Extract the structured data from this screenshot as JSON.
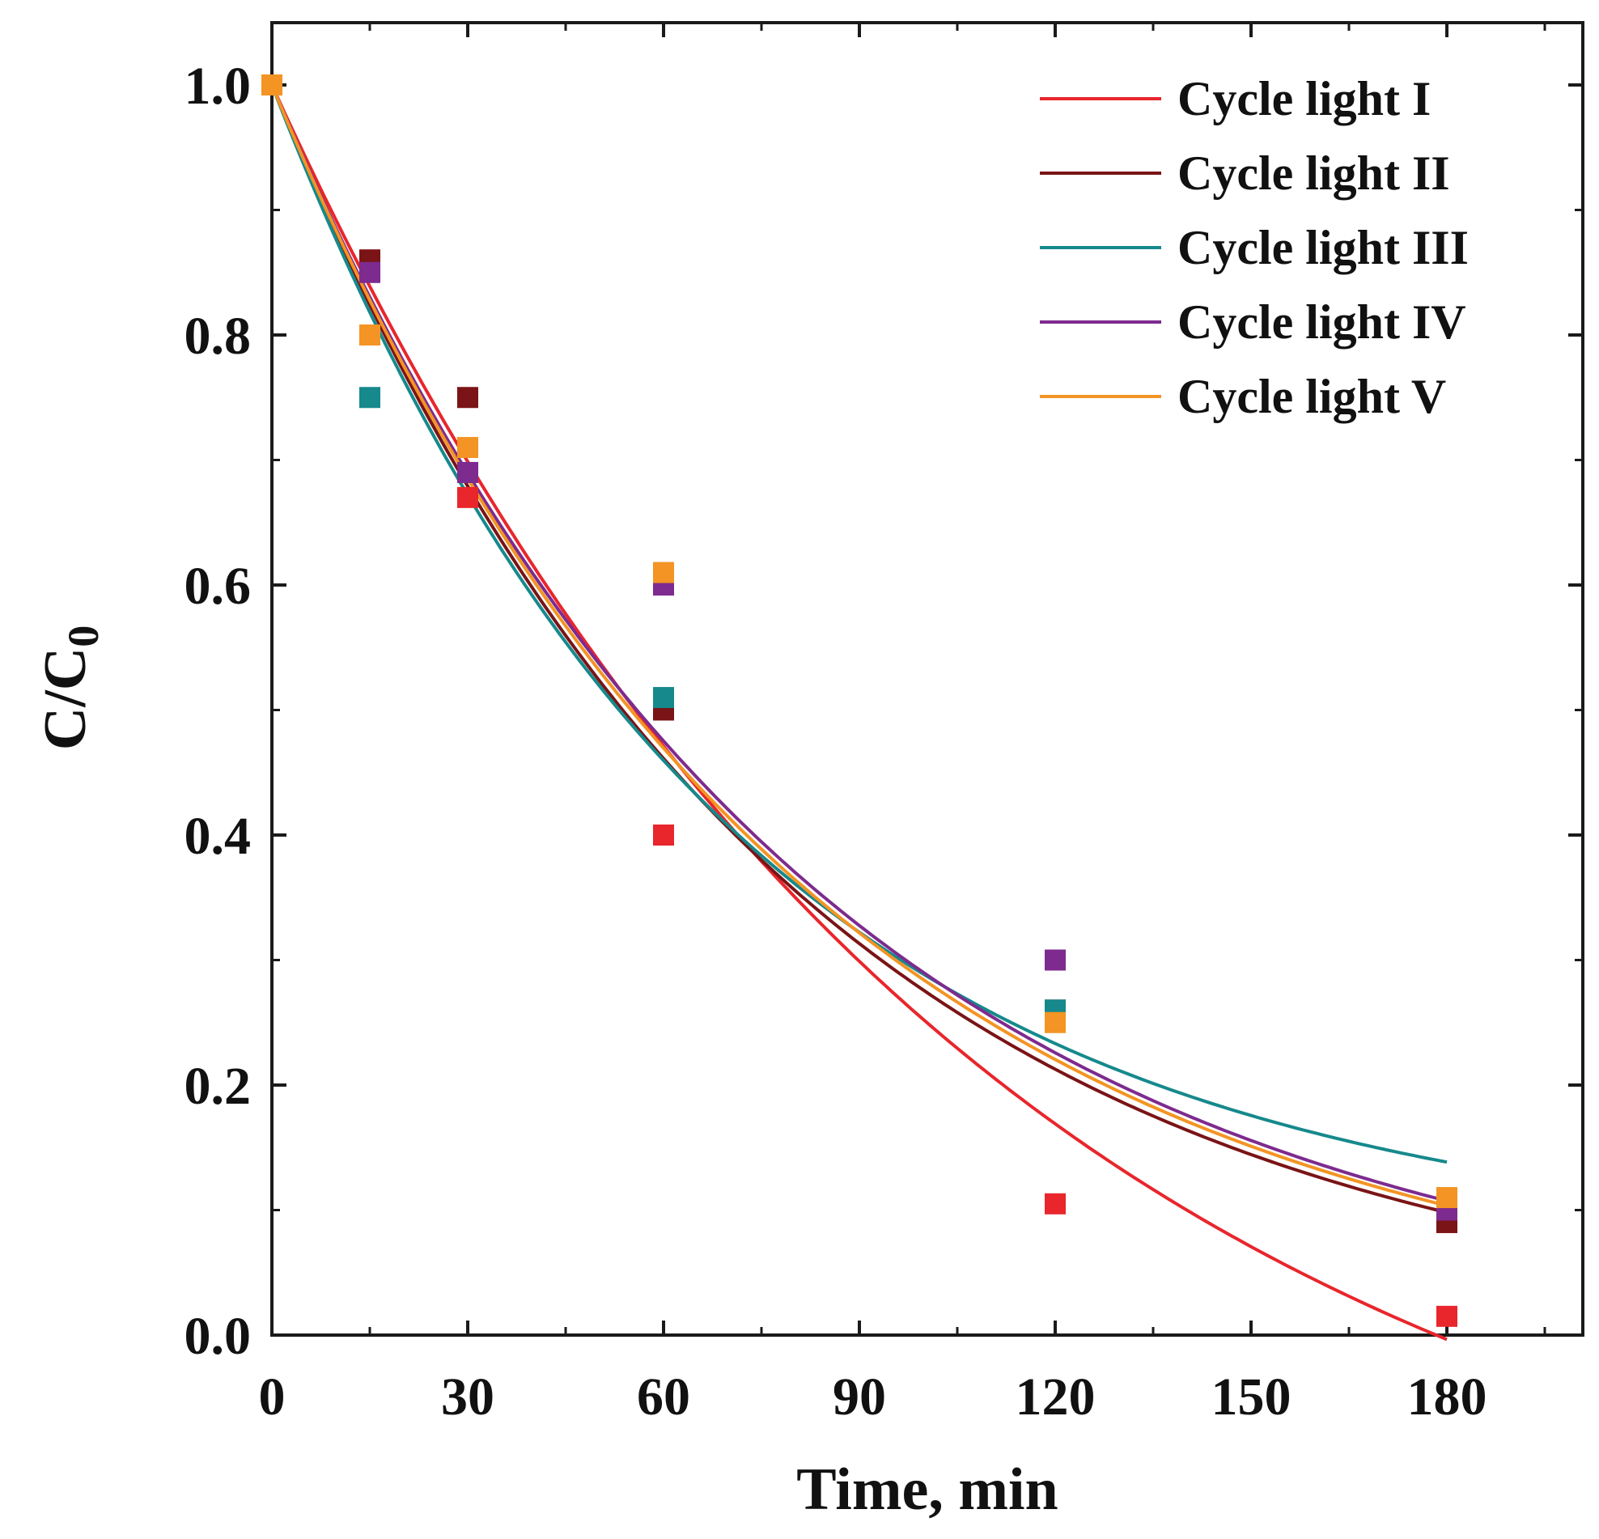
{
  "chart_data": {
    "type": "scatter",
    "title": "",
    "xlabel": "Time, min",
    "ylabel": "C/C",
    "ylabel_subscript": "0",
    "xlim": [
      0,
      200
    ],
    "ylim": [
      0,
      1.05
    ],
    "xticks": [
      0,
      30,
      60,
      90,
      120,
      150,
      180
    ],
    "xtick_labels": [
      "0",
      "30",
      "60",
      "90",
      "120",
      "150",
      "180"
    ],
    "yticks": [
      0.0,
      0.2,
      0.4,
      0.6,
      0.8,
      1.0
    ],
    "ytick_labels": [
      "0.0",
      "0.2",
      "0.4",
      "0.6",
      "0.8",
      "1.0"
    ],
    "legend_position": "top-right",
    "x": [
      0,
      15,
      30,
      60,
      120,
      180
    ],
    "series": [
      {
        "name": "Cycle light I",
        "color": "#e8262c",
        "values": [
          1.0,
          0.86,
          0.67,
          0.4,
          0.105,
          0.015
        ],
        "fit": {
          "model": "a*exp(-k*t)+c",
          "a": 1.233,
          "k": 0.00934,
          "c": -0.233
        }
      },
      {
        "name": "Cycle light II",
        "color": "#7a1416",
        "values": [
          1.0,
          0.86,
          0.75,
          0.5,
          0.26,
          0.09
        ],
        "fit": {
          "model": "a*exp(-k*t)+c",
          "a": 1.0,
          "k": 0.0129,
          "c": 0.0
        }
      },
      {
        "name": "Cycle light III",
        "color": "#16898c",
        "values": [
          1.0,
          0.75,
          0.69,
          0.51,
          0.26,
          0.1
        ],
        "fit": {
          "model": "a*exp(-k*t)+c",
          "a": 0.93,
          "k": 0.0145,
          "c": 0.07
        }
      },
      {
        "name": "Cycle light IV",
        "color": "#7d2b8f",
        "values": [
          1.0,
          0.85,
          0.69,
          0.6,
          0.3,
          0.1
        ],
        "fit": {
          "model": "a*exp(-k*t)+c",
          "a": 1.0,
          "k": 0.0124,
          "c": 0.0
        }
      },
      {
        "name": "Cycle light V",
        "color": "#f39424",
        "values": [
          1.0,
          0.8,
          0.71,
          0.61,
          0.25,
          0.11
        ],
        "fit": {
          "model": "a*exp(-k*t)+c",
          "a": 1.0,
          "k": 0.0126,
          "c": 0.0
        }
      }
    ]
  }
}
